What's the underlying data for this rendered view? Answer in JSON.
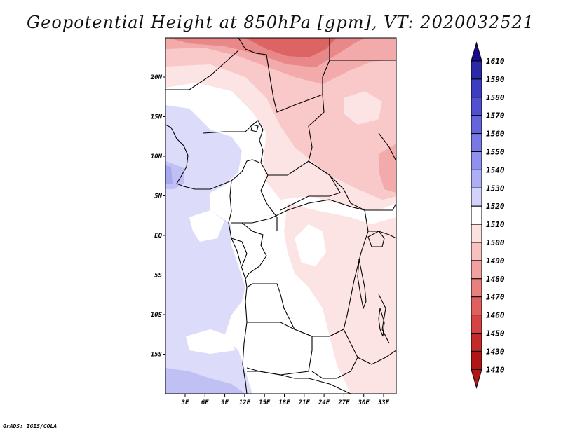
{
  "title": "Geopotential Height at 850hPa [gpm], VT: 2020032521",
  "credit": "GrADS: IGES/COLA",
  "lat_labels": [
    "20N",
    "15N",
    "10N",
    "5N",
    "EQ",
    "5S",
    "10S",
    "15S"
  ],
  "lon_labels": [
    "3E",
    "6E",
    "9E",
    "12E",
    "15E",
    "18E",
    "21E",
    "24E",
    "27E",
    "30E",
    "33E"
  ],
  "colorbar": {
    "labels": [
      "1610",
      "1590",
      "1580",
      "1570",
      "1560",
      "1550",
      "1540",
      "1530",
      "1520",
      "1510",
      "1500",
      "1490",
      "1480",
      "1470",
      "1460",
      "1450",
      "1430",
      "1410"
    ],
    "colors": [
      "#1a0a8c",
      "#2a2aa8",
      "#3d3dc0",
      "#5050d0",
      "#6464dc",
      "#7878e6",
      "#9090ee",
      "#aeaef4",
      "#d2d2fa",
      "#ffffff",
      "#fde0e0",
      "#f9c0c0",
      "#f2a0a0",
      "#e98080",
      "#df6060",
      "#d44444",
      "#c42a2a",
      "#b01616"
    ]
  },
  "colors": {
    "white": "#ffffff",
    "blue1": "#dcdcfa",
    "blue2": "#c0c0f4",
    "blue3": "#a8a8f0",
    "pink1": "#fde4e4",
    "pink2": "#f9c8c8",
    "pink3": "#f2aaaa",
    "red1": "#e88888",
    "red2": "#dd6464"
  }
}
